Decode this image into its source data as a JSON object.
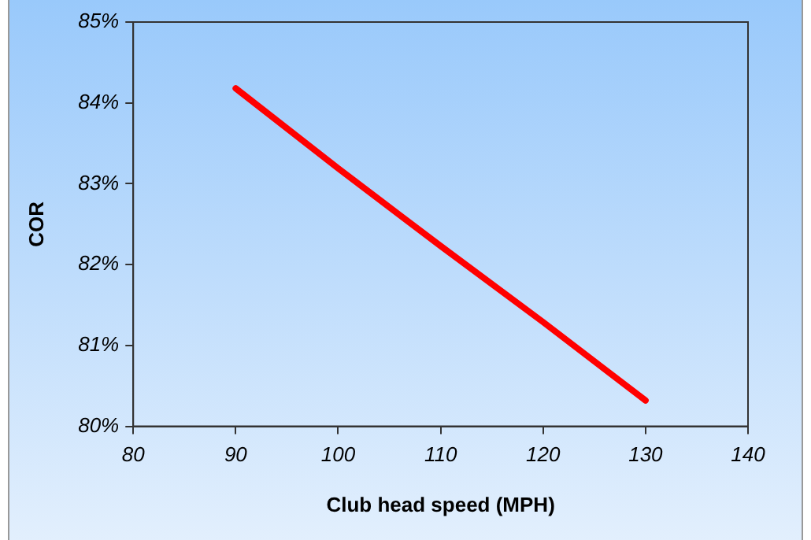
{
  "chart_data": {
    "type": "line",
    "xlabel": "Club head speed (MPH)",
    "ylabel": "COR",
    "x": [
      90,
      100,
      110,
      120,
      130
    ],
    "series": [
      {
        "color": "#ff0000",
        "values": [
          84.18,
          83.19,
          82.23,
          81.29,
          80.32
        ]
      }
    ],
    "xlim": [
      80,
      140
    ],
    "xticks": [
      80,
      90,
      100,
      110,
      120,
      130,
      140
    ],
    "ylim": [
      80,
      85
    ],
    "yticks": [
      {
        "value": 80,
        "label": "80%"
      },
      {
        "value": 81,
        "label": "81%"
      },
      {
        "value": 82,
        "label": "82%"
      },
      {
        "value": 83,
        "label": "83%"
      },
      {
        "value": 84,
        "label": "84%"
      },
      {
        "value": 85,
        "label": "85%"
      }
    ],
    "grid": false,
    "legend": false,
    "marker": "none",
    "line_style": "solid"
  }
}
